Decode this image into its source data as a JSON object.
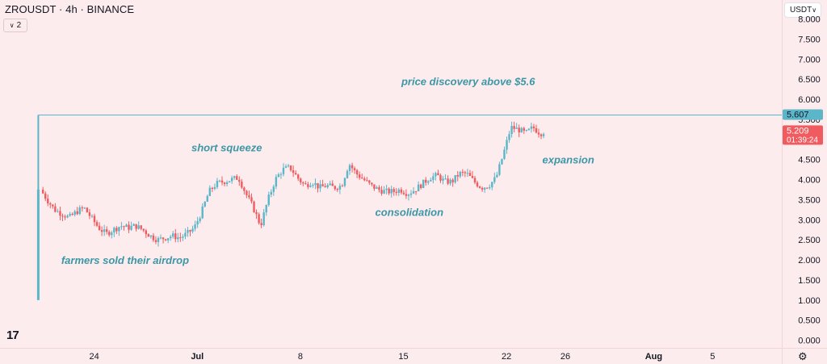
{
  "header": {
    "title": "ZROUSDT · 4h · BINANCE",
    "indicator_count": "2",
    "currency": "USDT"
  },
  "chart_data": {
    "type": "candlestick",
    "symbol": "ZROUSDT",
    "interval": "4h",
    "exchange": "BINANCE",
    "ylim": [
      0.0,
      8.0
    ],
    "y_ticks": [
      "0.000",
      "0.500",
      "1.000",
      "1.500",
      "2.000",
      "2.500",
      "3.000",
      "3.500",
      "4.000",
      "4.500",
      "5.000",
      "5.500",
      "6.000",
      "6.500",
      "7.000",
      "7.500",
      "8.000"
    ],
    "y_tick_values": [
      0,
      0.5,
      1,
      1.5,
      2,
      2.5,
      3,
      3.5,
      4,
      4.5,
      5,
      5.5,
      6,
      6.5,
      7,
      7.5,
      8
    ],
    "x_ticks": [
      {
        "label": "24",
        "day": 24,
        "bold": false
      },
      {
        "label": "Jul",
        "day": 31,
        "bold": true
      },
      {
        "label": "8",
        "day": 38,
        "bold": false
      },
      {
        "label": "15",
        "day": 45,
        "bold": false
      },
      {
        "label": "22",
        "day": 52,
        "bold": false
      },
      {
        "label": "26",
        "day": 56,
        "bold": false
      },
      {
        "label": "Aug",
        "day": 62,
        "bold": true
      },
      {
        "label": "5",
        "day": 66,
        "bold": false
      }
    ],
    "x_range_days": [
      17.6,
      70.7
    ],
    "first_candle": {
      "day": 20.2,
      "open": 1.0,
      "high": 3.85,
      "low": 1.0,
      "close": 3.75
    },
    "close_path": [
      [
        20.35,
        3.75
      ],
      [
        20.8,
        3.5
      ],
      [
        21.3,
        3.25
      ],
      [
        21.8,
        3.15
      ],
      [
        22.3,
        3.05
      ],
      [
        22.8,
        3.2
      ],
      [
        23.3,
        3.3
      ],
      [
        23.8,
        3.05
      ],
      [
        24.3,
        2.8
      ],
      [
        24.8,
        2.65
      ],
      [
        25.3,
        2.75
      ],
      [
        25.8,
        2.85
      ],
      [
        26.3,
        2.8
      ],
      [
        26.8,
        2.85
      ],
      [
        27.3,
        2.75
      ],
      [
        27.8,
        2.6
      ],
      [
        28.3,
        2.5
      ],
      [
        28.8,
        2.55
      ],
      [
        29.3,
        2.6
      ],
      [
        29.8,
        2.55
      ],
      [
        30.3,
        2.65
      ],
      [
        30.8,
        2.8
      ],
      [
        31.3,
        3.2
      ],
      [
        31.8,
        3.7
      ],
      [
        32.3,
        3.9
      ],
      [
        32.8,
        3.95
      ],
      [
        33.3,
        4.0
      ],
      [
        33.8,
        4.05
      ],
      [
        34.3,
        3.65
      ],
      [
        34.8,
        3.3
      ],
      [
        35.3,
        2.85
      ],
      [
        35.8,
        3.5
      ],
      [
        36.3,
        4.0
      ],
      [
        36.8,
        4.25
      ],
      [
        37.3,
        4.3
      ],
      [
        37.8,
        4.05
      ],
      [
        38.3,
        3.85
      ],
      [
        38.8,
        3.95
      ],
      [
        39.3,
        3.8
      ],
      [
        39.8,
        3.85
      ],
      [
        40.3,
        3.8
      ],
      [
        40.8,
        3.85
      ],
      [
        41.3,
        4.4
      ],
      [
        41.8,
        4.15
      ],
      [
        42.3,
        4.0
      ],
      [
        42.8,
        3.85
      ],
      [
        43.3,
        3.75
      ],
      [
        43.8,
        3.7
      ],
      [
        44.3,
        3.7
      ],
      [
        44.8,
        3.75
      ],
      [
        45.3,
        3.65
      ],
      [
        45.8,
        3.75
      ],
      [
        46.3,
        3.9
      ],
      [
        46.8,
        4.05
      ],
      [
        47.3,
        4.1
      ],
      [
        47.8,
        3.95
      ],
      [
        48.3,
        3.95
      ],
      [
        48.8,
        4.15
      ],
      [
        49.3,
        4.15
      ],
      [
        49.8,
        3.95
      ],
      [
        50.3,
        3.8
      ],
      [
        50.8,
        3.85
      ],
      [
        51.3,
        4.05
      ],
      [
        51.8,
        4.65
      ],
      [
        52.3,
        5.3
      ],
      [
        52.8,
        5.25
      ],
      [
        53.3,
        5.15
      ],
      [
        53.8,
        5.3
      ],
      [
        54.3,
        5.15
      ],
      [
        54.6,
        5.209
      ]
    ],
    "horizontal_line": {
      "value": 5.607,
      "from_day": 20.2,
      "color": "#5ab6c8"
    },
    "price_labels": [
      {
        "value": 5.607,
        "text": "5.607",
        "bg": "#5ab6c8",
        "fg": "#131722"
      },
      {
        "value": 5.209,
        "text": "5.209",
        "countdown": "01:39:24",
        "bg": "#ef5b5f",
        "fg": "#ffffff"
      }
    ],
    "annotations": [
      {
        "text": "price discovery above $5.6",
        "day": 49.4,
        "y": 6.35
      },
      {
        "text": "short squeeze",
        "day": 33.0,
        "y": 4.7
      },
      {
        "text": "expansion",
        "day": 56.2,
        "y": 4.4
      },
      {
        "text": "consolidation",
        "day": 45.4,
        "y": 3.1
      },
      {
        "text": "farmers sold their airdrop",
        "day": 26.1,
        "y": 1.9
      }
    ],
    "colors": {
      "up": "#5ab6c8",
      "down": "#ef5b5f",
      "annotation": "#3b97a7",
      "axis_text": "#131722",
      "background": "#fdeced"
    }
  }
}
